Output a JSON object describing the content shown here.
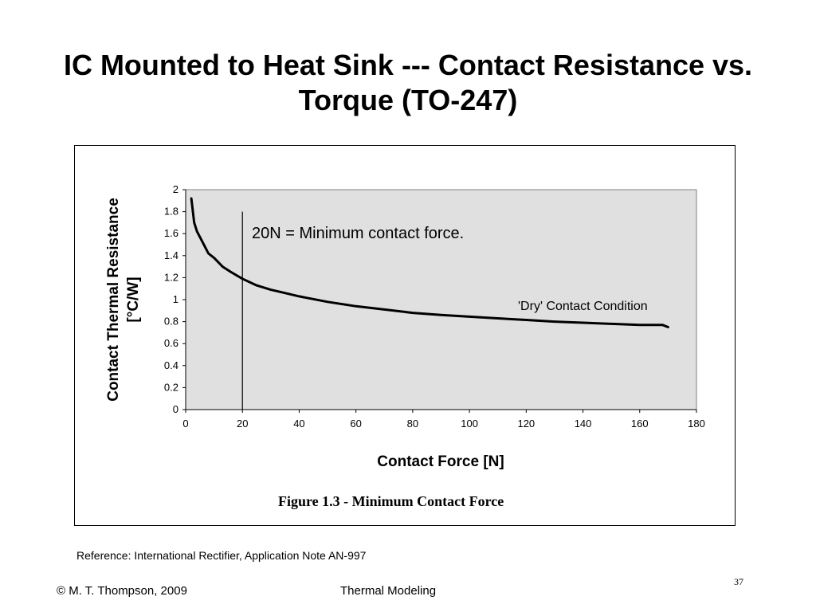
{
  "slide": {
    "title_line1": "IC Mounted to Heat Sink --- Contact Resistance vs.",
    "title_line2": "Torque (TO-247)",
    "reference": "Reference: International Rectifier, Application Note AN-997",
    "footer_left": "© M. T. Thompson, 2009",
    "footer_center": "Thermal Modeling",
    "page_number": "37"
  },
  "chart_data": {
    "type": "line",
    "caption": "Figure 1.3 - Minimum Contact Force",
    "xlabel": "Contact Force [N]",
    "ylabel_line1": "Contact Thermal Resistance",
    "ylabel_line2": "[°C/W]",
    "xlim": [
      0,
      180
    ],
    "ylim": [
      0,
      2
    ],
    "xticks": [
      0,
      20,
      40,
      60,
      80,
      100,
      120,
      140,
      160,
      180
    ],
    "yticks": [
      0,
      0.2,
      0.4,
      0.6,
      0.8,
      1,
      1.2,
      1.4,
      1.6,
      1.8,
      2
    ],
    "grid": false,
    "plot_background": "#e0e0e0",
    "series": [
      {
        "name": "'Dry' Contact Condition",
        "color": "#000000",
        "x": [
          2,
          3,
          4,
          6,
          8,
          10,
          13,
          16,
          20,
          25,
          30,
          35,
          40,
          50,
          60,
          70,
          80,
          90,
          100,
          110,
          120,
          130,
          140,
          150,
          160,
          168,
          170
        ],
        "y": [
          1.92,
          1.7,
          1.62,
          1.52,
          1.42,
          1.38,
          1.3,
          1.25,
          1.19,
          1.13,
          1.09,
          1.06,
          1.03,
          0.98,
          0.94,
          0.91,
          0.88,
          0.86,
          0.845,
          0.83,
          0.815,
          0.8,
          0.79,
          0.78,
          0.77,
          0.77,
          0.75
        ]
      }
    ],
    "annotations": [
      {
        "text": "20N = Minimum contact force.",
        "x_line": 20
      },
      {
        "text": "'Dry' Contact Condition"
      }
    ]
  }
}
